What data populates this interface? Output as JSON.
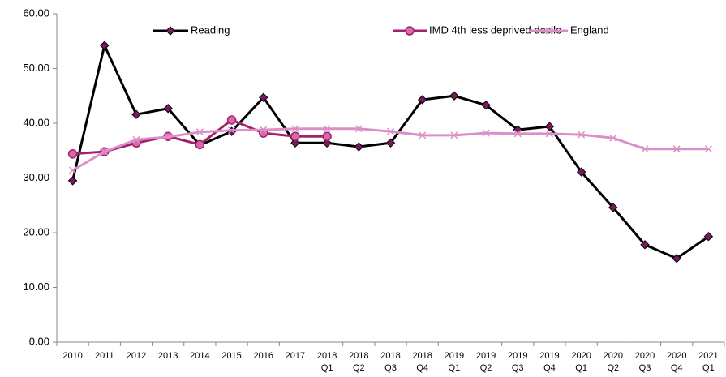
{
  "chart_data": {
    "type": "line",
    "categories": [
      "2010",
      "2011",
      "2012",
      "2013",
      "2014",
      "2015",
      "2016",
      "2017",
      "2018 Q1",
      "2018 Q2",
      "2018 Q3",
      "2018 Q4",
      "2019 Q1",
      "2019 Q2",
      "2019 Q3",
      "2019 Q4",
      "2020 Q1",
      "2020 Q2",
      "2020 Q3",
      "2020 Q4",
      "2021 Q1"
    ],
    "series": [
      {
        "name": "Reading",
        "color": "#000000",
        "marker": "diamond",
        "marker_color": "#7a1a5e",
        "values": [
          29.5,
          54.2,
          41.6,
          42.7,
          36.0,
          38.5,
          44.7,
          36.4,
          36.4,
          35.7,
          36.4,
          44.3,
          45.0,
          43.3,
          38.8,
          39.4,
          31.1,
          24.6,
          17.8,
          15.3,
          19.3
        ]
      },
      {
        "name": "IMD 4th less deprived decile",
        "color": "#a3206f",
        "marker": "circle",
        "marker_color": "#d46aa8",
        "values": [
          34.4,
          34.8,
          36.4,
          37.6,
          36.1,
          40.6,
          38.2,
          37.6,
          37.6,
          null,
          null,
          null,
          null,
          null,
          null,
          null,
          null,
          null,
          null,
          null,
          null
        ]
      },
      {
        "name": "England",
        "color": "#dc8fc6",
        "marker": "x",
        "marker_color": "#dc8fc6",
        "values": [
          31.4,
          34.8,
          37.0,
          37.5,
          38.4,
          38.7,
          38.8,
          39.0,
          39.0,
          39.0,
          38.5,
          37.8,
          37.8,
          38.2,
          38.1,
          38.1,
          37.9,
          37.3,
          35.3,
          35.3,
          35.3
        ]
      }
    ],
    "ylim": [
      0,
      60
    ],
    "yticks": [
      {
        "value": 0,
        "label": "0.00"
      },
      {
        "value": 10,
        "label": "10.00"
      },
      {
        "value": 20,
        "label": "20.00"
      },
      {
        "value": 30,
        "label": "30.00"
      },
      {
        "value": 40,
        "label": "40.00"
      },
      {
        "value": 50,
        "label": "50.00"
      },
      {
        "value": 60,
        "label": "60.00"
      }
    ],
    "legend": "top"
  }
}
